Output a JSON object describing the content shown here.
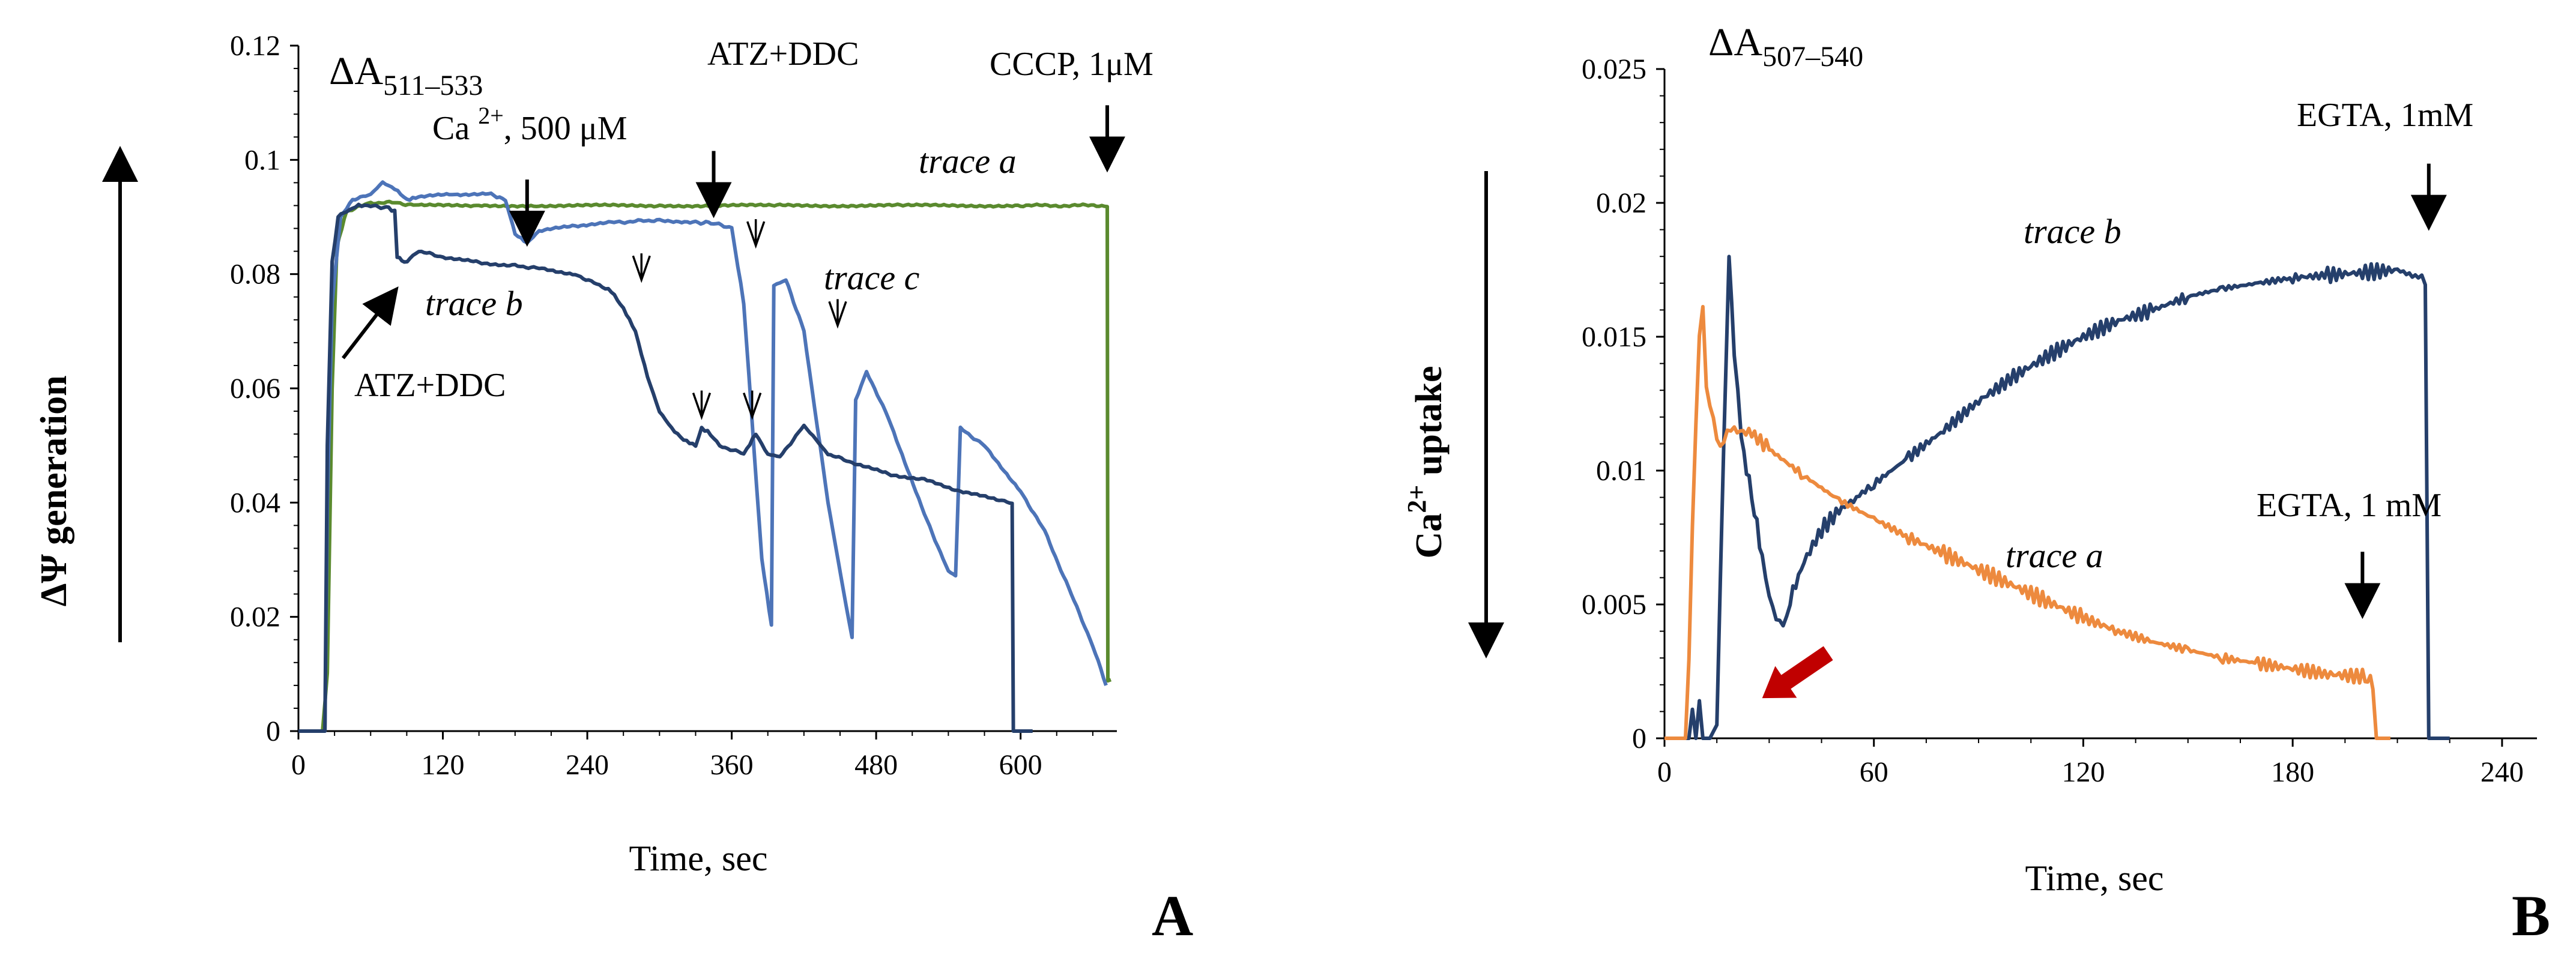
{
  "chart_data": [
    {
      "panel": "A",
      "type": "line",
      "title": "ΔA511–533",
      "title_main": "ΔA",
      "title_sub": "511–533",
      "xlabel": "Time, sec",
      "ylabel": "ΔΨ generation",
      "xlim": [
        0,
        680
      ],
      "ylim": [
        0,
        0.12
      ],
      "xticks": [
        "0",
        "120",
        "240",
        "360",
        "480",
        "600"
      ],
      "xtick_values": [
        0,
        120,
        240,
        360,
        480,
        600
      ],
      "yticks": [
        "0",
        "0.02",
        "0.04",
        "0.06",
        "0.08",
        "0.1",
        "0.12"
      ],
      "ytick_values": [
        0,
        0.02,
        0.04,
        0.06,
        0.08,
        0.1,
        0.12
      ],
      "ylabel_arrow": "up",
      "series": [
        {
          "name": "trace a",
          "color": "#5a8a2e",
          "x": [
            0,
            20,
            24,
            28,
            32,
            40,
            60,
            80,
            100,
            150,
            200,
            300,
            400,
            500,
            600,
            672,
            672.5,
            675
          ],
          "y": [
            0,
            0,
            0.01,
            0.06,
            0.085,
            0.091,
            0.0925,
            0.0925,
            0.092,
            0.092,
            0.092,
            0.092,
            0.092,
            0.092,
            0.092,
            0.092,
            0.009,
            0.009
          ]
        },
        {
          "name": "trace c",
          "color": "#4d74b8",
          "x": [
            0,
            22,
            24,
            28,
            35,
            45,
            60,
            70,
            80,
            90,
            100,
            130,
            160,
            172,
            180,
            190,
            200,
            230,
            260,
            300,
            330,
            345,
            360,
            370,
            385,
            393,
            395,
            405,
            420,
            440,
            455,
            460,
            463,
            472,
            490,
            520,
            540,
            546,
            550,
            570,
            600,
            620,
            640,
            660,
            671
          ],
          "y": [
            0,
            0,
            0.04,
            0.075,
            0.09,
            0.093,
            0.094,
            0.096,
            0.095,
            0.093,
            0.0935,
            0.094,
            0.094,
            0.093,
            0.087,
            0.0855,
            0.0875,
            0.0885,
            0.089,
            0.0895,
            0.089,
            0.089,
            0.088,
            0.075,
            0.03,
            0.0185,
            0.078,
            0.079,
            0.07,
            0.04,
            0.022,
            0.0165,
            0.058,
            0.063,
            0.055,
            0.038,
            0.028,
            0.027,
            0.053,
            0.05,
            0.042,
            0.035,
            0.025,
            0.015,
            0.008
          ]
        },
        {
          "name": "trace b",
          "color": "#253f6b",
          "x": [
            0,
            22,
            24,
            28,
            33,
            40,
            50,
            60,
            75,
            80,
            82,
            88,
            100,
            120,
            150,
            180,
            200,
            230,
            250,
            260,
            270,
            280,
            290,
            300,
            310,
            320,
            330,
            335,
            340,
            350,
            370,
            380,
            390,
            400,
            420,
            430,
            440,
            460,
            490,
            520,
            550,
            580,
            593,
            594,
            600,
            610
          ],
          "y": [
            0,
            0,
            0.05,
            0.082,
            0.09,
            0.091,
            0.092,
            0.092,
            0.0915,
            0.091,
            0.083,
            0.082,
            0.084,
            0.083,
            0.082,
            0.0815,
            0.081,
            0.08,
            0.078,
            0.077,
            0.074,
            0.07,
            0.062,
            0.056,
            0.053,
            0.051,
            0.05,
            0.053,
            0.0525,
            0.05,
            0.0485,
            0.052,
            0.0485,
            0.048,
            0.0535,
            0.051,
            0.0485,
            0.047,
            0.045,
            0.044,
            0.042,
            0.0405,
            0.04,
            0,
            0,
            0
          ]
        }
      ],
      "annotations": [
        {
          "text": "Ca 2+, 500 μM",
          "main": "Ca ",
          "sup": "2+",
          "rest": ", 500 μM",
          "x": 190,
          "y": 0.085,
          "type": "arrow-down"
        },
        {
          "text": "ATZ+DDC",
          "x": 345,
          "y": 0.09,
          "type": "arrow-down"
        },
        {
          "text": "CCCP, 1μM",
          "x": 672,
          "y": 0.098,
          "type": "arrow-down"
        },
        {
          "text": "ATZ+DDC",
          "x": 82,
          "y": 0.08,
          "type": "arrow-up-right"
        },
        {
          "text": "",
          "x": 285,
          "y": 0.079,
          "type": "mini-arrow"
        },
        {
          "text": "",
          "x": 380,
          "y": 0.085,
          "type": "mini-arrow"
        },
        {
          "text": "",
          "x": 448,
          "y": 0.071,
          "type": "mini-arrow"
        },
        {
          "text": "",
          "x": 335,
          "y": 0.055,
          "type": "mini-arrow"
        },
        {
          "text": "",
          "x": 377,
          "y": 0.055,
          "type": "mini-arrow"
        }
      ],
      "trace_labels": [
        "trace a",
        "trace b",
        "trace c"
      ],
      "panel_letter": "A"
    },
    {
      "panel": "B",
      "type": "line",
      "title": "ΔA507–540",
      "title_main": "ΔA",
      "title_sub": "507–540",
      "xlabel": "Time, sec",
      "ylabel": "Ca2+ uptake",
      "ylabel_main": "Ca",
      "ylabel_sup": "2+",
      "ylabel_rest": " uptake",
      "xlim": [
        0,
        250
      ],
      "ylim": [
        0,
        0.025
      ],
      "xticks": [
        "0",
        "60",
        "120",
        "180",
        "240"
      ],
      "xtick_values": [
        0,
        60,
        120,
        180,
        240
      ],
      "yticks": [
        "0",
        "0.005",
        "0.01",
        "0.015",
        "0.02",
        "0.025"
      ],
      "ytick_values": [
        0,
        0.005,
        0.01,
        0.015,
        0.02,
        0.025
      ],
      "ylabel_arrow": "down",
      "series": [
        {
          "name": "trace b",
          "color": "#253f6b",
          "x": [
            0,
            7,
            8,
            9,
            10,
            11,
            13,
            15,
            17,
            18.5,
            20,
            22,
            25,
            28,
            30,
            32,
            34,
            36,
            40,
            45,
            50,
            55,
            60,
            70,
            80,
            90,
            100,
            110,
            120,
            130,
            140,
            150,
            160,
            170,
            180,
            190,
            200,
            210,
            216,
            218,
            219,
            225
          ],
          "y": [
            0,
            0,
            0.0008,
            0,
            0.0012,
            0,
            0,
            0.0005,
            0.011,
            0.018,
            0.0145,
            0.0112,
            0.009,
            0.0068,
            0.0055,
            0.0044,
            0.0042,
            0.0052,
            0.0066,
            0.0078,
            0.0085,
            0.009,
            0.0095,
            0.0105,
            0.0115,
            0.0126,
            0.0135,
            0.0143,
            0.015,
            0.0156,
            0.016,
            0.0165,
            0.0168,
            0.017,
            0.0172,
            0.0173,
            0.0174,
            0.0175,
            0.0172,
            0.0172,
            0,
            0
          ]
        },
        {
          "name": "trace a",
          "color": "#ed8a3e",
          "x": [
            0,
            6,
            7,
            8,
            9,
            10,
            11,
            12,
            14,
            16,
            18,
            20,
            25,
            30,
            40,
            50,
            60,
            70,
            80,
            90,
            100,
            110,
            120,
            130,
            140,
            150,
            160,
            170,
            180,
            190,
            200,
            203,
            204,
            208
          ],
          "y": [
            0,
            0,
            0.003,
            0.008,
            0.012,
            0.015,
            0.0163,
            0.013,
            0.0118,
            0.011,
            0.0114,
            0.0115,
            0.0114,
            0.0108,
            0.0098,
            0.0089,
            0.0082,
            0.0075,
            0.0069,
            0.0063,
            0.0057,
            0.0051,
            0.0045,
            0.004,
            0.0036,
            0.0033,
            0.003,
            0.0028,
            0.0026,
            0.0024,
            0.0023,
            0.0021,
            0,
            0
          ]
        }
      ],
      "annotations": [
        {
          "text": "EGTA, 1mM",
          "x": 219,
          "y": 0.019,
          "type": "arrow-down"
        },
        {
          "text": "EGTA, 1 mM",
          "x": 200,
          "y": 0.0045,
          "type": "arrow-down"
        },
        {
          "text": "",
          "x": 28,
          "y": 0.0015,
          "type": "red-arrow",
          "color": "#c00000"
        }
      ],
      "trace_labels": [
        "trace b",
        "trace a"
      ],
      "panel_letter": "B"
    }
  ]
}
